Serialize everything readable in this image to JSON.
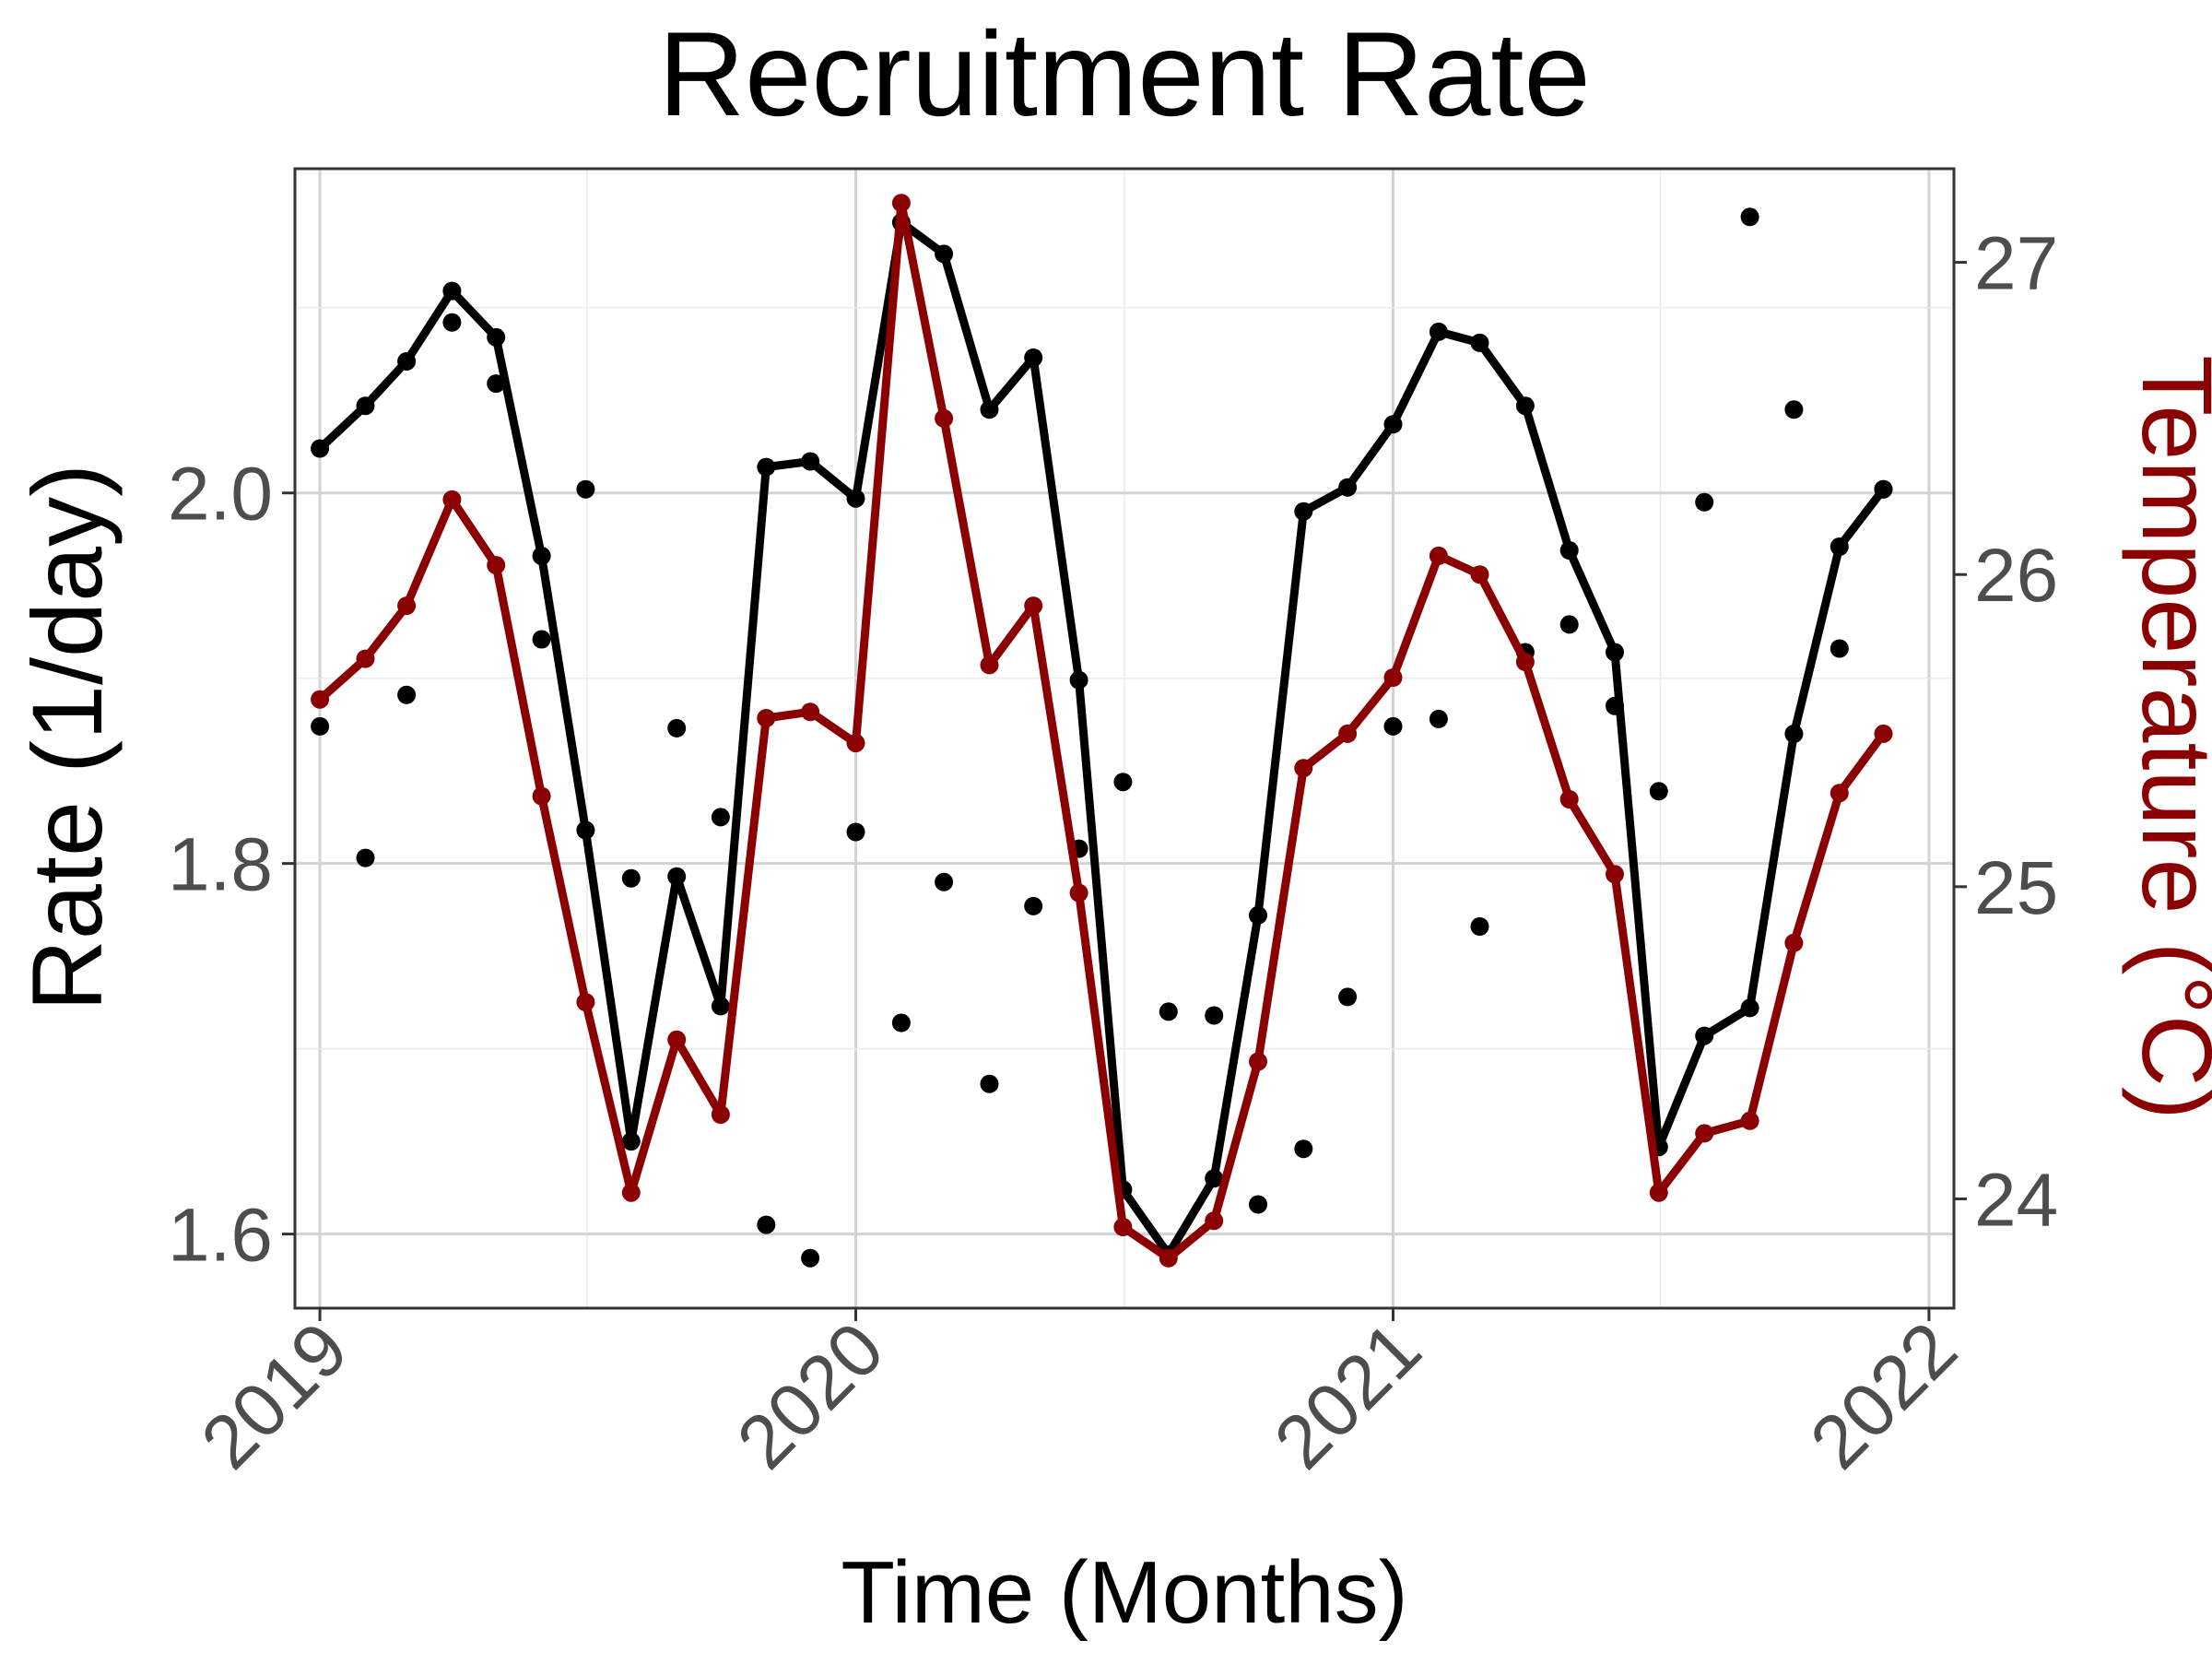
{
  "chart_data": {
    "type": "line",
    "title": "Recruitment Rate",
    "xlabel": "Time (Months)",
    "ylabel": "Rate (1/day)",
    "y2label": "Temperature (°C)",
    "x": [
      "2019-01",
      "2019-02",
      "2019-03",
      "2019-04",
      "2019-05",
      "2019-06",
      "2019-07",
      "2019-08",
      "2019-09",
      "2019-10",
      "2019-11",
      "2019-12",
      "2020-01",
      "2020-02",
      "2020-03",
      "2020-04",
      "2020-05",
      "2020-06",
      "2020-07",
      "2020-08",
      "2020-09",
      "2020-10",
      "2020-11",
      "2020-12",
      "2021-01",
      "2021-02",
      "2021-03",
      "2021-04",
      "2021-05",
      "2021-06",
      "2021-07",
      "2021-08",
      "2021-09",
      "2021-10",
      "2021-11",
      "2021-12"
    ],
    "xlim": [
      "2018-12-15",
      "2022-01-18"
    ],
    "x_ticks": [
      "2019",
      "2020",
      "2021",
      "2022"
    ],
    "x_tick_dates": [
      "2019-01-01",
      "2020-01-01",
      "2021-01-01",
      "2022-01-01"
    ],
    "ylim": [
      1.56,
      2.175
    ],
    "y_ticks": [
      "1.6",
      "1.8",
      "2.0"
    ],
    "y_tick_values": [
      1.6,
      1.8,
      2.0
    ],
    "y2lim": [
      23.65,
      27.3
    ],
    "y2_ticks": [
      "24",
      "25",
      "26",
      "27"
    ],
    "y2_tick_values": [
      24,
      25,
      26,
      27
    ],
    "grid": true,
    "legend": "none",
    "series": [
      {
        "axis": "left",
        "style": "line+points",
        "color": "#000000",
        "values": [
          2.024,
          2.047,
          2.071,
          2.109,
          2.084,
          1.966,
          1.818,
          1.65,
          1.793,
          1.723,
          2.014,
          2.017,
          1.997,
          2.146,
          2.129,
          2.045,
          2.073,
          1.899,
          1.624,
          1.589,
          1.63,
          1.772,
          1.99,
          2.003,
          2.037,
          2.087,
          2.081,
          2.047,
          1.969,
          1.914,
          1.647,
          1.707,
          1.722,
          1.87,
          1.971,
          2.002
        ]
      },
      {
        "axis": "left",
        "style": "points",
        "color": "#000000",
        "values": [
          1.874,
          1.803,
          1.891,
          2.092,
          2.059,
          1.921,
          2.002,
          1.792,
          1.873,
          1.825,
          1.605,
          1.587,
          1.817,
          1.714,
          1.79,
          1.681,
          1.777,
          1.808,
          1.844,
          1.72,
          1.718,
          1.616,
          1.646,
          1.728,
          1.874,
          1.878,
          1.766,
          1.914,
          1.929,
          1.885,
          1.839,
          1.995,
          2.149,
          2.045,
          1.916,
          2.002
        ]
      },
      {
        "axis": "right",
        "style": "line+points",
        "color": "#8b0000",
        "values": [
          25.6,
          25.73,
          25.9,
          26.24,
          26.03,
          25.29,
          24.63,
          24.02,
          24.51,
          24.27,
          25.54,
          25.56,
          25.46,
          27.19,
          26.5,
          25.71,
          25.9,
          24.98,
          23.91,
          23.81,
          23.93,
          24.44,
          25.38,
          25.49,
          25.67,
          26.06,
          26.0,
          25.72,
          25.28,
          25.04,
          24.02,
          24.21,
          24.25,
          24.82,
          25.3,
          25.49
        ]
      }
    ]
  }
}
